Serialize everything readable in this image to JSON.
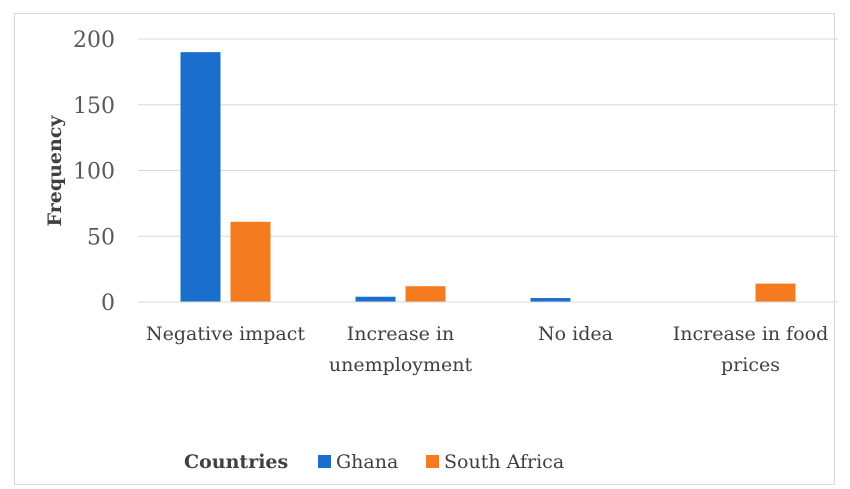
{
  "chart_data": {
    "type": "bar",
    "title": "",
    "xlabel": "",
    "ylabel": "Frequency",
    "ylim": [
      0,
      200
    ],
    "yticks": [
      0,
      50,
      100,
      150,
      200
    ],
    "grid": true,
    "legend_placement": "bottom",
    "legend_title": "Countries",
    "categories": [
      [
        "Negative impact"
      ],
      [
        "Increase in",
        "unemployment"
      ],
      [
        "No idea"
      ],
      [
        "Increase in food",
        "prices"
      ]
    ],
    "series": [
      {
        "name": "Ghana",
        "color": "#1a6fcc",
        "values": [
          190,
          4,
          3,
          0
        ]
      },
      {
        "name": "South Africa",
        "color": "#f47b20",
        "values": [
          61,
          12,
          0,
          14
        ]
      }
    ]
  }
}
